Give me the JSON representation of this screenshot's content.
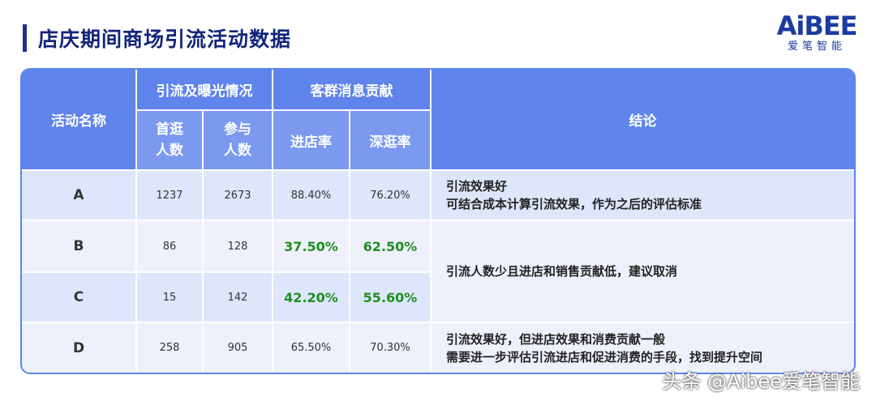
{
  "header": {
    "title": "店庆期间商场引流活动数据"
  },
  "logo": {
    "word": "AiBEE",
    "sub": "爱笔智能"
  },
  "table": {
    "headers": {
      "activity_name": "活动名称",
      "group1": "引流及曝光情况",
      "group2": "客群消息贡献",
      "first_visit": "首逛人数",
      "participants": "参与人数",
      "entry_rate": "进店率",
      "deep_visit_rate": "深逛率",
      "conclusion": "结论"
    },
    "rows": [
      {
        "name": "A",
        "first_visit": "1237",
        "participants": "2673",
        "entry_rate": "88.40%",
        "deep_visit_rate": "76.20%"
      },
      {
        "name": "B",
        "first_visit": "86",
        "participants": "128",
        "entry_rate": "37.50%",
        "deep_visit_rate": "62.50%"
      },
      {
        "name": "C",
        "first_visit": "15",
        "participants": "142",
        "entry_rate": "42.20%",
        "deep_visit_rate": "55.60%"
      },
      {
        "name": "D",
        "first_visit": "258",
        "participants": "905",
        "entry_rate": "65.50%",
        "deep_visit_rate": "70.30%"
      }
    ],
    "conclusions": {
      "a_line1": "引流效果好",
      "a_line2": "可结合成本计算引流效果，作为之后的评估标准",
      "bc": "引流人数少且进店和销售贡献低，建议取消",
      "d_line1": "引流效果好，但进店效果和消费贡献一般",
      "d_line2": "需要进一步评估引流进店和促进消费的手段，找到提升空间"
    },
    "highlight_color": "#1f8f1f"
  },
  "watermark": "头条 @Aibee爱笔智能"
}
